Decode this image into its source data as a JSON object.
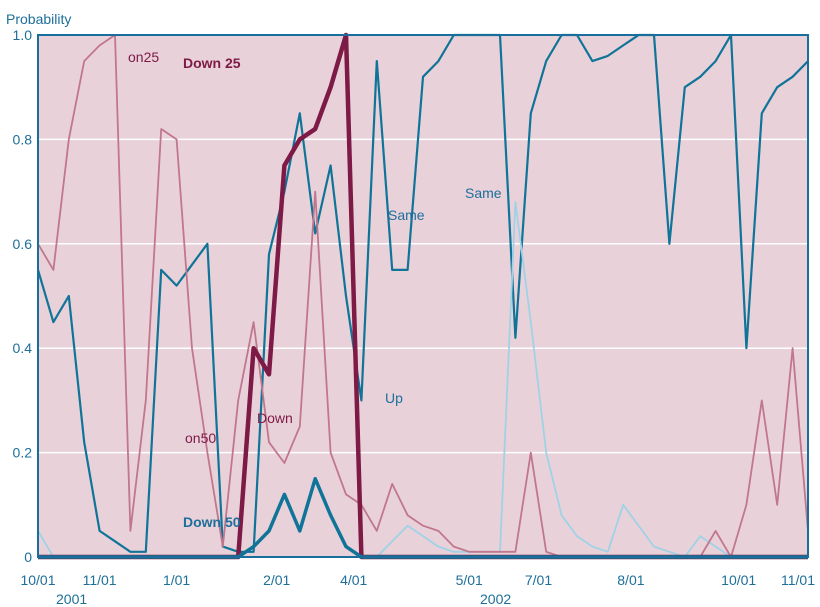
{
  "chart_data": {
    "type": "line",
    "ylabel": "Probability",
    "ylim": [
      0,
      1
    ],
    "y_ticks": [
      "0",
      "0.2",
      "0.4",
      "0.6",
      "0.8",
      "1.0"
    ],
    "x_ticks": [
      "10/01",
      "11/01",
      "1/01",
      "2/01",
      "4/01",
      "5/01",
      "7/01",
      "8/01",
      "10/01",
      "11/01"
    ],
    "year_labels": [
      "2001",
      "2002"
    ],
    "grid": "horizontal",
    "colors": {
      "plot_bg": "#e9d1da",
      "frame": "#1a6e9c",
      "grid": "#ffffff",
      "same": "#0f7497",
      "up": "#9fd2e6",
      "down": "#c0778e",
      "down25": "#7d1a46",
      "down50": "#0f7497",
      "text_blue": "#1d6f9a",
      "text_dark": "#7d1a46"
    },
    "annotations": [
      "on25",
      "Down 25",
      "on50",
      "Down 50",
      "Down",
      "Up",
      "Same",
      "Same"
    ],
    "series": [
      {
        "name": "Same",
        "color": "#0f7497",
        "width": 2.2,
        "x": [
          0,
          2,
          4,
          6,
          8,
          10,
          12,
          14,
          16,
          18,
          20,
          22,
          24,
          26,
          28,
          30,
          32,
          34,
          36,
          38,
          40,
          42,
          44,
          46,
          48,
          50,
          52,
          54,
          56,
          58,
          60,
          62,
          64,
          66,
          68,
          70,
          72,
          74,
          76,
          78,
          80,
          82,
          84,
          86,
          88,
          90,
          92,
          94,
          96,
          98,
          100
        ],
        "y": [
          0.55,
          0.45,
          0.5,
          0.22,
          0.05,
          0.03,
          0.01,
          0.01,
          0.55,
          0.52,
          0.56,
          0.6,
          0.02,
          0.01,
          0.01,
          0.58,
          0.7,
          0.85,
          0.62,
          0.75,
          0.5,
          0.3,
          0.95,
          0.55,
          0.55,
          0.92,
          0.95,
          1.0,
          1.0,
          1.0,
          1.0,
          0.42,
          0.85,
          0.95,
          1.0,
          1.0,
          0.95,
          0.96,
          0.98,
          1.0,
          1.0,
          0.6,
          0.9,
          0.92,
          0.95,
          1.0,
          0.4,
          0.85,
          0.9,
          0.92,
          0.95
        ]
      },
      {
        "name": "Up",
        "color": "#9fd2e6",
        "width": 1.8,
        "x": [
          0,
          2,
          4,
          6,
          8,
          10,
          12,
          14,
          16,
          18,
          20,
          22,
          24,
          26,
          28,
          30,
          32,
          34,
          36,
          38,
          40,
          42,
          44,
          46,
          48,
          50,
          52,
          54,
          56,
          58,
          60,
          62,
          64,
          66,
          68,
          70,
          72,
          74,
          76,
          78,
          80,
          82,
          84,
          86,
          88,
          90,
          92,
          94,
          96,
          98,
          100
        ],
        "y": [
          0.05,
          0.0,
          0.0,
          0.0,
          0.0,
          0.0,
          0.0,
          0.0,
          0.0,
          0.0,
          0.0,
          0.0,
          0.0,
          0.0,
          0.0,
          0.0,
          0.0,
          0.0,
          0.0,
          0.0,
          0.0,
          0.0,
          0.0,
          0.03,
          0.06,
          0.04,
          0.02,
          0.01,
          0.01,
          0.01,
          0.01,
          0.68,
          0.45,
          0.2,
          0.08,
          0.04,
          0.02,
          0.01,
          0.1,
          0.06,
          0.02,
          0.01,
          0.0,
          0.04,
          0.02,
          0.0,
          0.0,
          0.0,
          0.0,
          0.0,
          0.0
        ]
      },
      {
        "name": "Down",
        "color": "#c0778e",
        "width": 1.8,
        "x": [
          0,
          2,
          4,
          6,
          8,
          10,
          12,
          14,
          16,
          18,
          20,
          22,
          24,
          26,
          28,
          30,
          32,
          34,
          36,
          38,
          40,
          42,
          44,
          46,
          48,
          50,
          52,
          54,
          56,
          58,
          60,
          62,
          64,
          66,
          68,
          70,
          72,
          74,
          76,
          78,
          80,
          82,
          84,
          86,
          88,
          90,
          92,
          94,
          96,
          98,
          100
        ],
        "y": [
          0.6,
          0.55,
          0.8,
          0.95,
          0.98,
          1.0,
          0.05,
          0.3,
          0.82,
          0.8,
          0.4,
          0.2,
          0.02,
          0.3,
          0.45,
          0.22,
          0.18,
          0.25,
          0.7,
          0.2,
          0.12,
          0.1,
          0.05,
          0.14,
          0.08,
          0.06,
          0.05,
          0.02,
          0.01,
          0.01,
          0.01,
          0.01,
          0.2,
          0.01,
          0.0,
          0.0,
          0.0,
          0.0,
          0.0,
          0.0,
          0.0,
          0.0,
          0.0,
          0.0,
          0.05,
          0.0,
          0.1,
          0.3,
          0.1,
          0.4,
          0.05
        ]
      },
      {
        "name": "Down 25",
        "color": "#7d1a46",
        "width": 4.5,
        "x": [
          0,
          2,
          4,
          6,
          8,
          10,
          12,
          14,
          16,
          18,
          20,
          22,
          24,
          26,
          28,
          30,
          32,
          34,
          36,
          38,
          40,
          42,
          44,
          46,
          48,
          50,
          52,
          54,
          56,
          58,
          60,
          62,
          64,
          66,
          68,
          70,
          72,
          74,
          76,
          78,
          80,
          82,
          84,
          86,
          88,
          90,
          92,
          94,
          96,
          98,
          100
        ],
        "y": [
          0.0,
          0.0,
          0.0,
          0.0,
          0.0,
          0.0,
          0.0,
          0.0,
          0.0,
          0.0,
          0.0,
          0.0,
          0.0,
          0.0,
          0.4,
          0.35,
          0.75,
          0.8,
          0.82,
          0.9,
          1.0,
          0.0,
          0.0,
          0.0,
          0.0,
          0.0,
          0.0,
          0.0,
          0.0,
          0.0,
          0.0,
          0.0,
          0.0,
          0.0,
          0.0,
          0.0,
          0.0,
          0.0,
          0.0,
          0.0,
          0.0,
          0.0,
          0.0,
          0.0,
          0.0,
          0.0,
          0.0,
          0.0,
          0.0,
          0.0,
          0.0
        ]
      },
      {
        "name": "Down 50",
        "color": "#0f7497",
        "width": 3.5,
        "x": [
          0,
          2,
          4,
          6,
          8,
          10,
          12,
          14,
          16,
          18,
          20,
          22,
          24,
          26,
          28,
          30,
          32,
          34,
          36,
          38,
          40,
          42,
          44,
          46,
          48,
          50,
          52,
          54,
          56,
          58,
          60,
          62,
          64,
          66,
          68,
          70,
          72,
          74,
          76,
          78,
          80,
          82,
          84,
          86,
          88,
          90,
          92,
          94,
          96,
          98,
          100
        ],
        "y": [
          0.0,
          0.0,
          0.0,
          0.0,
          0.0,
          0.0,
          0.0,
          0.0,
          0.0,
          0.0,
          0.0,
          0.0,
          0.0,
          0.0,
          0.02,
          0.05,
          0.12,
          0.05,
          0.15,
          0.08,
          0.02,
          0.0,
          0.0,
          0.0,
          0.0,
          0.0,
          0.0,
          0.0,
          0.0,
          0.0,
          0.0,
          0.0,
          0.0,
          0.0,
          0.0,
          0.0,
          0.0,
          0.0,
          0.0,
          0.0,
          0.0,
          0.0,
          0.0,
          0.0,
          0.0,
          0.0,
          0.0,
          0.0,
          0.0,
          0.0,
          0.0
        ]
      }
    ]
  }
}
